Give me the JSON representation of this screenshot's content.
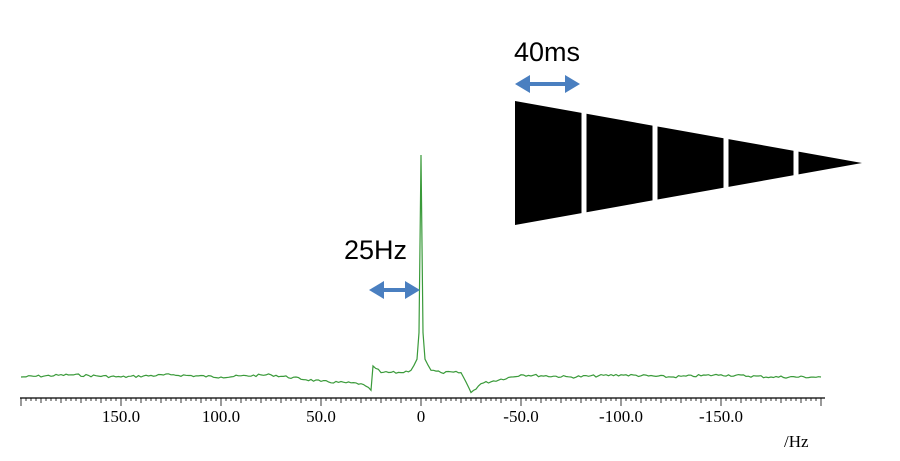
{
  "chart_data": {
    "type": "line",
    "title": "",
    "xlabel": "/Hz",
    "ylabel": "",
    "x_axis_reversed": true,
    "xlim": [
      200,
      -200
    ],
    "x_tick_labels": [
      "150.0",
      "100.0",
      "50.0",
      "0",
      "-50.0",
      "-100.0",
      "-150.0"
    ],
    "x_ticks": [
      150,
      100,
      50,
      0,
      -50,
      -100,
      -150
    ],
    "grid": false,
    "series": [
      {
        "color": "#3a9a3a",
        "x": [
          200,
          175,
          150,
          125,
          100,
          75,
          50,
          30,
          25,
          24,
          20,
          10,
          5,
          2,
          1,
          0,
          -1,
          -2,
          -5,
          -10,
          -20,
          -24,
          -25,
          -30,
          -50,
          -75,
          -100,
          -125,
          -150,
          -175,
          -200
        ],
        "y": [
          0.0,
          0.01,
          0.0,
          0.01,
          0.0,
          0.01,
          -0.02,
          -0.03,
          -0.06,
          0.05,
          0.02,
          0.02,
          0.03,
          0.08,
          0.2,
          1.0,
          0.2,
          0.08,
          0.03,
          0.02,
          0.02,
          -0.05,
          -0.07,
          -0.03,
          0.01,
          0.0,
          0.01,
          0.0,
          0.01,
          0.0,
          0.0
        ]
      }
    ],
    "annotations": [
      {
        "text": "25Hz",
        "arrow": "double-headed",
        "color": "#4a7fc0"
      },
      {
        "text": "40ms",
        "arrow": "double-headed",
        "color": "#4a7fc0"
      }
    ]
  },
  "inset": {
    "type": "decay-envelope",
    "segments": 5,
    "color": "#000000"
  }
}
